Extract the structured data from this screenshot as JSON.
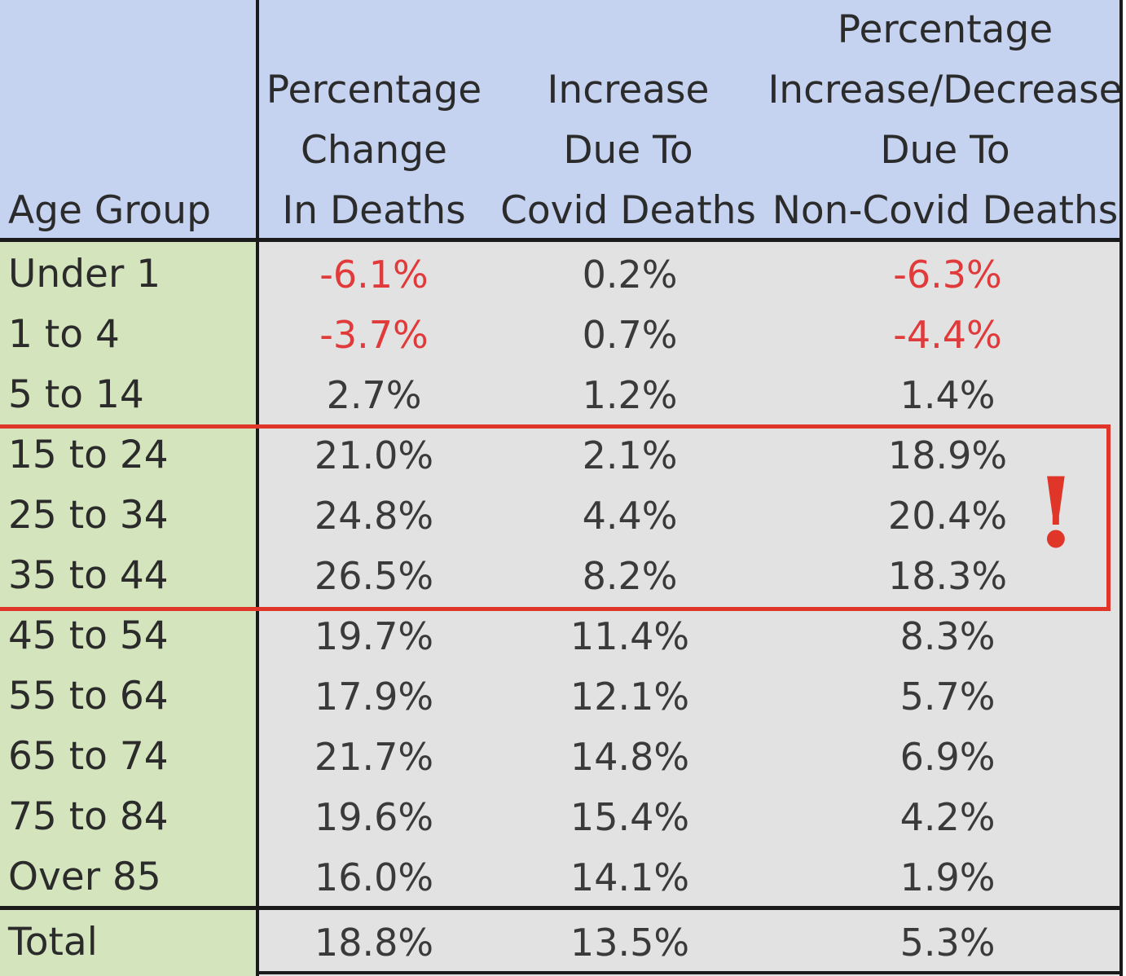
{
  "headers": {
    "age_group": "Age Group",
    "col1": [
      "Percentage",
      "Change",
      "In Deaths"
    ],
    "col2": [
      "Increase",
      "Due To",
      "Covid Deaths"
    ],
    "col3": [
      "Percentage",
      "Increase/Decrease",
      "Due To",
      "Non-Covid Deaths"
    ]
  },
  "rows": [
    {
      "age": "Under 1",
      "change": "-6.1%",
      "covid": "0.2%",
      "noncovid": "-6.3%"
    },
    {
      "age": "1 to 4",
      "change": "-3.7%",
      "covid": "0.7%",
      "noncovid": "-4.4%"
    },
    {
      "age": "5 to 14",
      "change": "2.7%",
      "covid": "1.2%",
      "noncovid": "1.4%"
    },
    {
      "age": "15 to 24",
      "change": "21.0%",
      "covid": "2.1%",
      "noncovid": "18.9%"
    },
    {
      "age": "25 to 34",
      "change": "24.8%",
      "covid": "4.4%",
      "noncovid": "20.4%"
    },
    {
      "age": "35 to 44",
      "change": "26.5%",
      "covid": "8.2%",
      "noncovid": "18.3%"
    },
    {
      "age": "45 to 54",
      "change": "19.7%",
      "covid": "11.4%",
      "noncovid": "8.3%"
    },
    {
      "age": "55 to 64",
      "change": "17.9%",
      "covid": "12.1%",
      "noncovid": "5.7%"
    },
    {
      "age": "65 to 74",
      "change": "21.7%",
      "covid": "14.8%",
      "noncovid": "6.9%"
    },
    {
      "age": "75 to 84",
      "change": "19.6%",
      "covid": "15.4%",
      "noncovid": "4.2%"
    },
    {
      "age": "Over 85",
      "change": "16.0%",
      "covid": "14.1%",
      "noncovid": "1.9%"
    }
  ],
  "total": {
    "age": "Total",
    "change": "18.8%",
    "covid": "13.5%",
    "noncovid": "5.3%"
  },
  "annotation": {
    "mark": "!"
  },
  "colors": {
    "header_bg": "#c6d3f0",
    "age_bg": "#d4e4bc",
    "data_bg": "#e2e2e2",
    "negative_text": "#e03a3a",
    "highlight": "#e0362a"
  }
}
